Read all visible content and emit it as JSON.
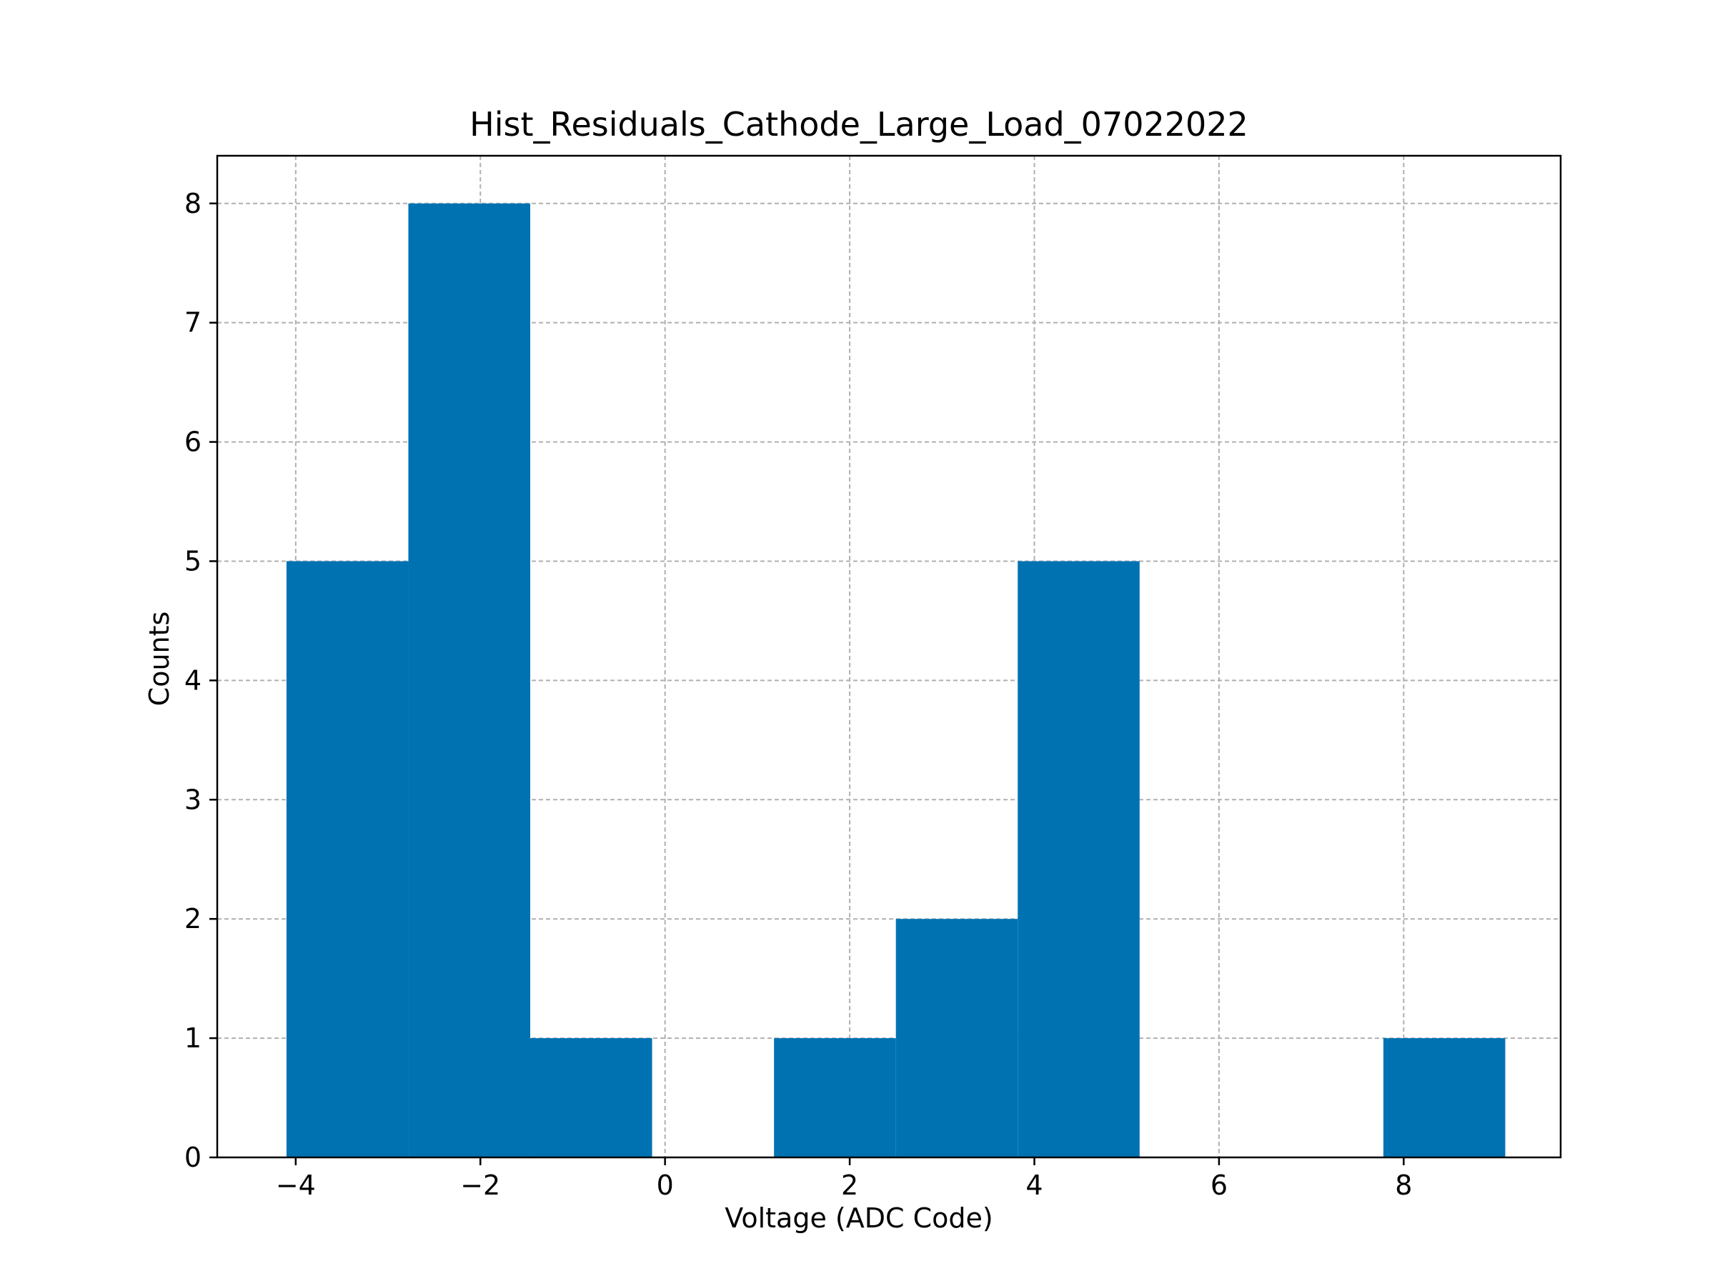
{
  "chart_data": {
    "type": "bar",
    "title": "Hist_Residuals_Cathode_Large_Load_07022022",
    "xlabel": "Voltage (ADC Code)",
    "ylabel": "Counts",
    "xlim": [
      -4.85,
      9.7
    ],
    "ylim": [
      0,
      8.4
    ],
    "xticks": [
      -4,
      -2,
      0,
      2,
      4,
      6,
      8
    ],
    "xtick_labels": [
      "−4",
      "−2",
      "0",
      "2",
      "4",
      "6",
      "8"
    ],
    "yticks": [
      0,
      1,
      2,
      3,
      4,
      5,
      6,
      7,
      8
    ],
    "ytick_labels": [
      "0",
      "1",
      "2",
      "3",
      "4",
      "5",
      "6",
      "7",
      "8"
    ],
    "grid": true,
    "bar_color": "#0072b2",
    "bins": [
      {
        "x0": -4.1,
        "x1": -2.78,
        "count": 5
      },
      {
        "x0": -2.78,
        "x1": -1.46,
        "count": 8
      },
      {
        "x0": -1.46,
        "x1": -0.14,
        "count": 1
      },
      {
        "x0": -0.14,
        "x1": 1.18,
        "count": 0
      },
      {
        "x0": 1.18,
        "x1": 2.5,
        "count": 1
      },
      {
        "x0": 2.5,
        "x1": 3.82,
        "count": 2
      },
      {
        "x0": 3.82,
        "x1": 5.14,
        "count": 5
      },
      {
        "x0": 5.14,
        "x1": 6.46,
        "count": 0
      },
      {
        "x0": 6.46,
        "x1": 7.78,
        "count": 0
      },
      {
        "x0": 7.78,
        "x1": 9.1,
        "count": 1
      }
    ]
  }
}
